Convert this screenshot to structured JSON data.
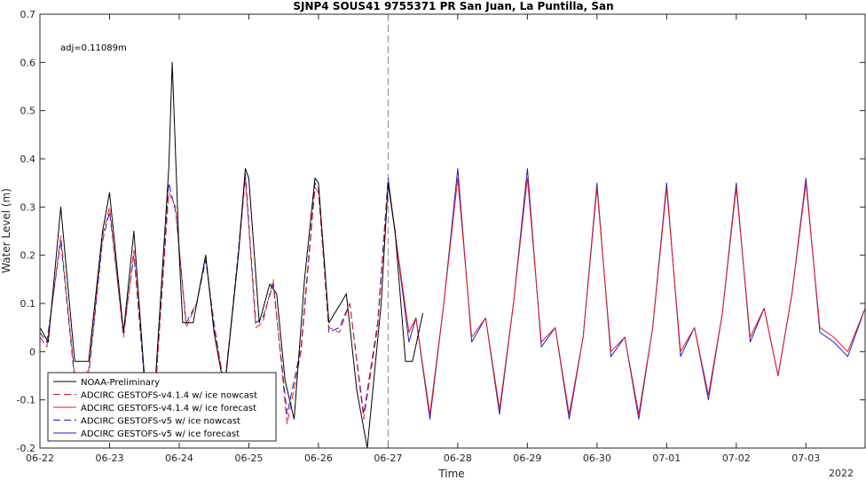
{
  "chart_data": {
    "type": "line",
    "title": "SJNP4 SOUS41 9755371 PR San Juan, La Puntilla, San",
    "xlabel": "Time",
    "ylabel": "Water Level (m)",
    "xlim": [
      0,
      11.85
    ],
    "ylim": [
      -0.2,
      0.7
    ],
    "yticks": [
      -0.2,
      -0.1,
      0,
      0.1,
      0.2,
      0.3,
      0.4,
      0.5,
      0.6,
      0.7
    ],
    "ytick_labels": [
      "-0.2",
      "-0.1",
      "0",
      "0.1",
      "0.2",
      "0.3",
      "0.4",
      "0.5",
      "0.6",
      "0.7"
    ],
    "xticks": [
      0,
      1,
      2,
      3,
      4,
      5,
      6,
      7,
      8,
      9,
      10,
      11
    ],
    "xtick_labels": [
      "06-22",
      "06-23",
      "06-24",
      "06-25",
      "06-26",
      "06-27",
      "06-28",
      "06-29",
      "06-30",
      "07-01",
      "07-02",
      "07-03"
    ],
    "x_secondary_label": "2022",
    "x_units": "days since 06-22",
    "nowcast_line_x": 5,
    "annotation": "adj=0.11089m",
    "grid": false,
    "legend_position": "bottom-left",
    "series": [
      {
        "name": "NOAA-Preliminary",
        "color": "#000000",
        "dash": "solid",
        "x": [
          0.0,
          0.12,
          0.3,
          0.5,
          0.7,
          0.9,
          1.0,
          1.2,
          1.35,
          1.5,
          1.65,
          1.85,
          1.9,
          2.0,
          2.05,
          2.2,
          2.38,
          2.5,
          2.65,
          2.85,
          2.95,
          3.0,
          3.15,
          3.3,
          3.4,
          3.52,
          3.65,
          3.8,
          3.95,
          4.0,
          4.15,
          4.32,
          4.4,
          4.55,
          4.7,
          4.9,
          5.0,
          5.1,
          5.25,
          5.35,
          5.5
        ],
        "y": [
          0.05,
          0.02,
          0.3,
          -0.02,
          -0.02,
          0.25,
          0.33,
          0.04,
          0.25,
          -0.05,
          -0.08,
          0.38,
          0.6,
          0.2,
          0.06,
          0.06,
          0.2,
          0.04,
          -0.08,
          0.2,
          0.38,
          0.36,
          0.06,
          0.14,
          0.12,
          -0.06,
          -0.14,
          0.15,
          0.36,
          0.35,
          0.06,
          0.1,
          0.12,
          -0.08,
          -0.2,
          0.1,
          0.35,
          0.25,
          -0.02,
          -0.02,
          0.08
        ]
      },
      {
        "name": "ADCIRC GESTOFS-v4.1.4 w/ ice nowcast",
        "color": "#e41a1c",
        "dash": "long",
        "x": [
          0.0,
          0.1,
          0.3,
          0.5,
          0.7,
          0.9,
          1.0,
          1.2,
          1.35,
          1.5,
          1.65,
          1.85,
          1.95,
          2.1,
          2.25,
          2.38,
          2.5,
          2.65,
          2.85,
          2.95,
          3.1,
          3.2,
          3.35,
          3.55,
          3.75,
          3.95,
          4.0,
          4.15,
          4.3,
          4.45,
          4.65,
          4.85,
          5.0
        ],
        "y": [
          0.03,
          0.01,
          0.24,
          -0.05,
          -0.04,
          0.24,
          0.3,
          0.03,
          0.21,
          -0.05,
          -0.1,
          0.33,
          0.3,
          0.05,
          0.1,
          0.2,
          0.05,
          -0.07,
          0.2,
          0.36,
          0.05,
          0.06,
          0.15,
          -0.15,
          0.0,
          0.34,
          0.33,
          0.05,
          0.04,
          0.1,
          -0.14,
          0.05,
          0.35
        ]
      },
      {
        "name": "ADCIRC GESTOFS-v4.1.4 w/ ice forecast",
        "color": "#e41a1c",
        "dash": "solid",
        "x": [
          5.0,
          5.3,
          5.4,
          5.6,
          5.8,
          6.0,
          6.2,
          6.4,
          6.6,
          6.8,
          7.0,
          7.2,
          7.4,
          7.6,
          7.8,
          8.0,
          8.2,
          8.4,
          8.6,
          8.8,
          9.0,
          9.2,
          9.4,
          9.6,
          9.8,
          10.0,
          10.2,
          10.4,
          10.6,
          10.8,
          11.0,
          11.2,
          11.4,
          11.6,
          11.85
        ],
        "y": [
          0.35,
          0.04,
          0.07,
          -0.13,
          0.1,
          0.36,
          0.03,
          0.07,
          -0.12,
          0.1,
          0.36,
          0.02,
          0.05,
          -0.13,
          0.03,
          0.34,
          0.0,
          0.03,
          -0.13,
          0.05,
          0.34,
          0.0,
          0.05,
          -0.09,
          0.08,
          0.34,
          0.03,
          0.09,
          -0.05,
          0.12,
          0.35,
          0.05,
          0.03,
          0.0,
          0.09
        ]
      },
      {
        "name": "ADCIRC GESTOFS-v5 w/ ice nowcast",
        "color": "#1f1fc8",
        "dash": "long",
        "x": [
          0.0,
          0.1,
          0.3,
          0.5,
          0.7,
          0.9,
          1.0,
          1.2,
          1.35,
          1.5,
          1.65,
          1.85,
          1.95,
          2.1,
          2.25,
          2.38,
          2.5,
          2.65,
          2.85,
          2.95,
          3.1,
          3.2,
          3.35,
          3.55,
          3.75,
          3.95,
          4.0,
          4.15,
          4.3,
          4.45,
          4.65,
          4.85,
          5.0
        ],
        "y": [
          0.04,
          0.02,
          0.23,
          -0.06,
          -0.05,
          0.23,
          0.29,
          0.04,
          0.2,
          -0.06,
          -0.1,
          0.35,
          0.29,
          0.06,
          0.1,
          0.19,
          0.06,
          -0.08,
          0.21,
          0.37,
          0.06,
          0.07,
          0.14,
          -0.13,
          0.01,
          0.35,
          0.34,
          0.04,
          0.05,
          0.1,
          -0.13,
          0.06,
          0.36
        ]
      },
      {
        "name": "ADCIRC GESTOFS-v5 w/ ice forecast",
        "color": "#1f1fc8",
        "dash": "solid",
        "x": [
          5.0,
          5.3,
          5.4,
          5.6,
          5.8,
          6.0,
          6.2,
          6.4,
          6.6,
          6.8,
          7.0,
          7.2,
          7.4,
          7.6,
          7.8,
          8.0,
          8.2,
          8.4,
          8.6,
          8.8,
          9.0,
          9.2,
          9.4,
          9.6,
          9.8,
          10.0,
          10.2,
          10.4,
          10.6,
          10.8,
          11.0,
          11.2,
          11.4,
          11.6,
          11.85
        ],
        "y": [
          0.36,
          0.02,
          0.07,
          -0.14,
          0.1,
          0.38,
          0.02,
          0.07,
          -0.13,
          0.1,
          0.38,
          0.01,
          0.05,
          -0.14,
          0.03,
          0.35,
          -0.01,
          0.03,
          -0.14,
          0.05,
          0.35,
          -0.01,
          0.05,
          -0.1,
          0.08,
          0.35,
          0.02,
          0.09,
          -0.05,
          0.12,
          0.36,
          0.04,
          0.02,
          -0.01,
          0.09
        ]
      }
    ]
  }
}
